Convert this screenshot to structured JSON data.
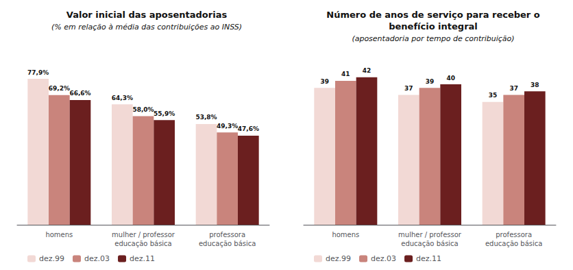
{
  "chart_data": [
    {
      "type": "bar",
      "title": "Valor inicial das aposentadorias",
      "subtitle": "(% em relação à média das contribuições ao INSS)",
      "categories": [
        "homens",
        "mulher / professor\neducação básica",
        "professora\neducação básica"
      ],
      "series": [
        {
          "name": "dez.99",
          "color": "#f2d9d5",
          "values": [
            77.9,
            64.3,
            53.8
          ],
          "value_labels": [
            "77,9%",
            "64,3%",
            "53,8%"
          ]
        },
        {
          "name": "dez.03",
          "color": "#c9847c",
          "values": [
            69.2,
            58.0,
            49.3
          ],
          "value_labels": [
            "69,2%",
            "58,0%",
            "49,3%"
          ]
        },
        {
          "name": "dez.11",
          "color": "#6b1f1f",
          "values": [
            66.6,
            55.9,
            47.6
          ],
          "value_labels": [
            "66,6%",
            "55,9%",
            "47,6%"
          ]
        }
      ],
      "ylim": [
        0,
        90
      ],
      "grid": false,
      "legend": "bottom",
      "data_labels": true,
      "tick_labels": "x"
    },
    {
      "type": "bar",
      "title": "Número de anos de serviço para receber o\nbenefício integral",
      "subtitle": "(aposentadoria por tempo de contribuição)",
      "categories": [
        "homens",
        "mulher / professor\neducação básica",
        "professora\neducação básica"
      ],
      "series": [
        {
          "name": "dez.99",
          "color": "#f2d9d5",
          "values": [
            39,
            37,
            35
          ]
        },
        {
          "name": "dez.03",
          "color": "#c9847c",
          "values": [
            41,
            39,
            37
          ]
        },
        {
          "name": "dez.11",
          "color": "#6b1f1f",
          "values": [
            42,
            40,
            38
          ]
        }
      ],
      "ylim": [
        0,
        48
      ],
      "grid": false,
      "legend": "bottom",
      "data_labels": true,
      "tick_labels": "x"
    }
  ]
}
